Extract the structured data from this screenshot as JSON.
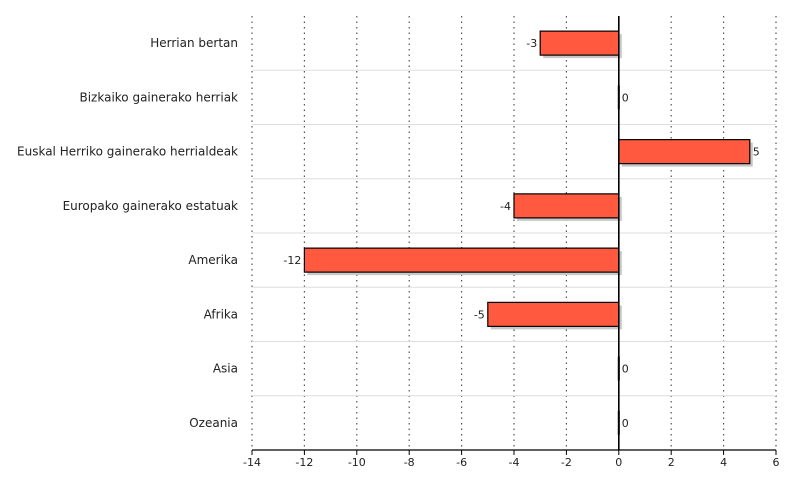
{
  "chart_data": {
    "type": "bar",
    "orientation": "horizontal",
    "categories": [
      "Herrian bertan",
      "Bizkaiko gainerako herriak",
      "Euskal Herriko gainerako herrialdeak",
      "Europako gainerako estatuak",
      "Amerika",
      "Afrika",
      "Asia",
      "Ozeania"
    ],
    "values": [
      -3,
      0,
      5,
      -4,
      -12,
      -5,
      0,
      0
    ],
    "value_labels": [
      "-3",
      "0",
      "5",
      "-4",
      "-12",
      "-5",
      "0",
      "0"
    ],
    "x_ticks": [
      "-14",
      "-12",
      "-10",
      "-8",
      "-6",
      "-4",
      "-2",
      "0",
      "2",
      "4",
      "6"
    ],
    "xlim": [
      -14,
      6
    ],
    "grid": "vertical-dotted",
    "legend": "none",
    "colors": {
      "bar": "#ff5a40",
      "bar_stroke": "#000000",
      "shadow": "#c8c8c8",
      "grid": "#555555",
      "band_line": "#dddddd"
    }
  }
}
